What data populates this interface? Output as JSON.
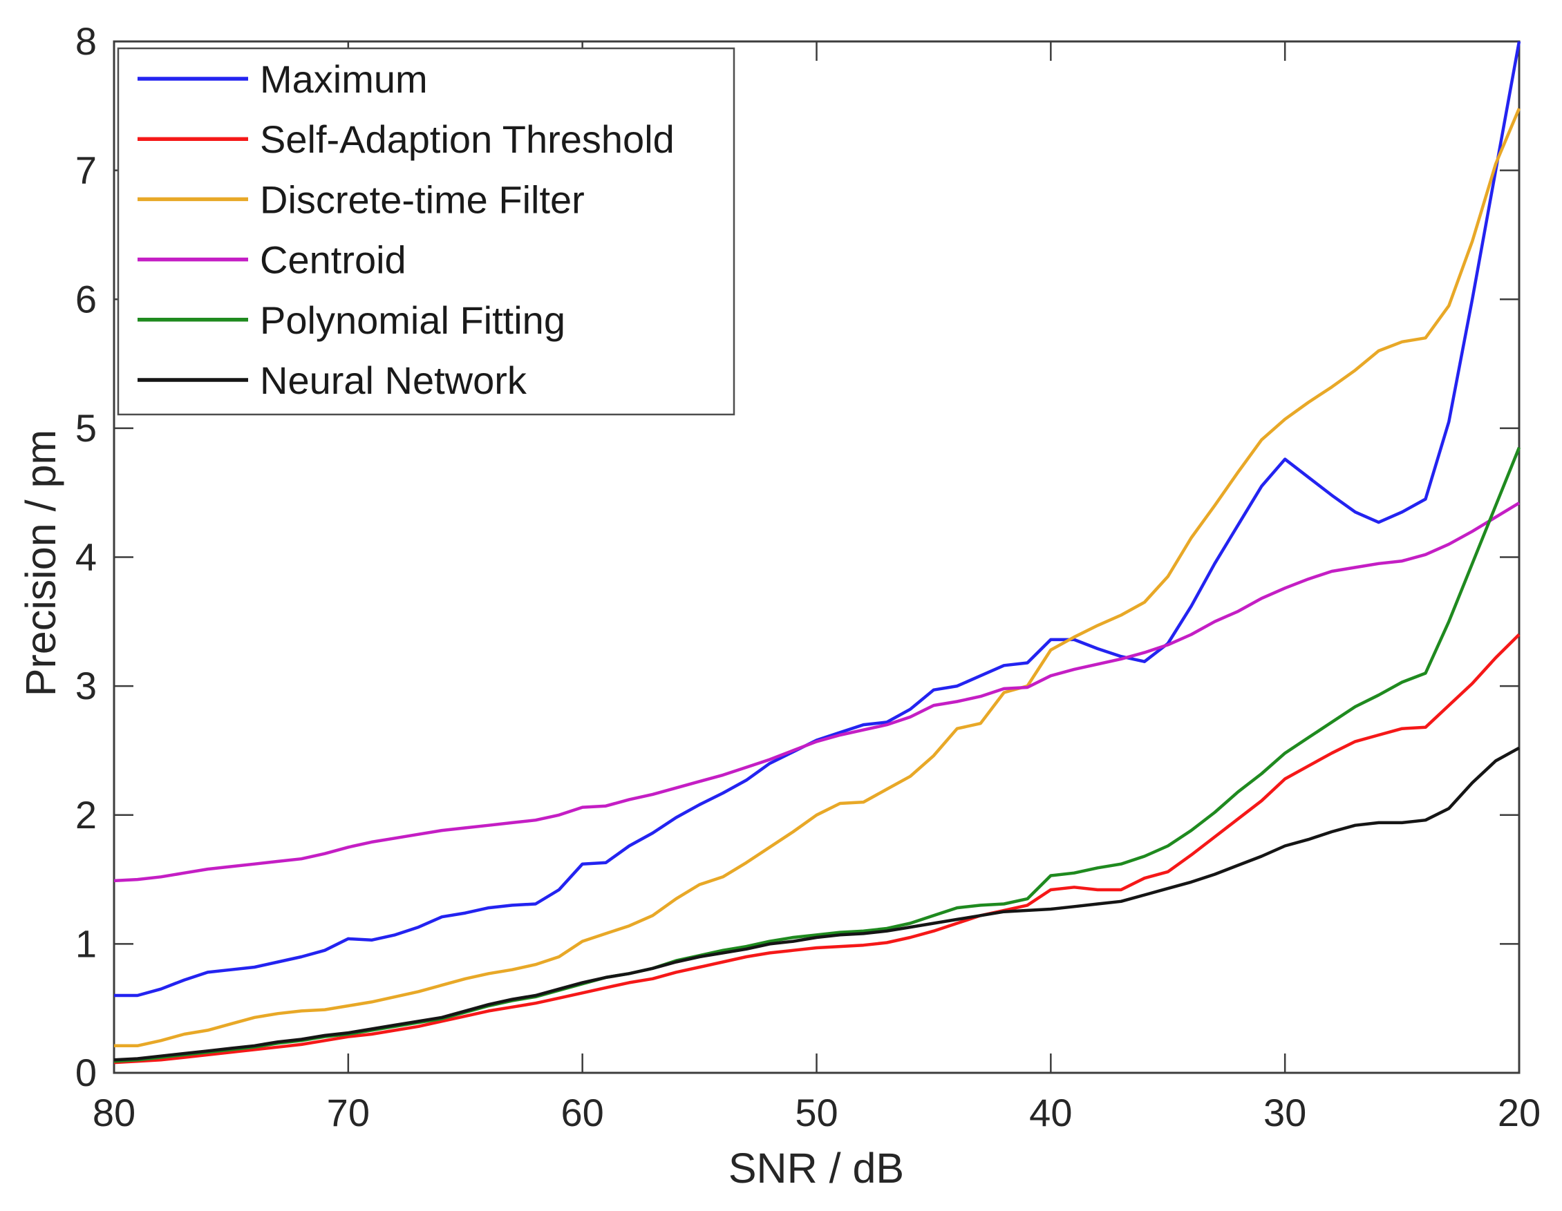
{
  "chart_data": {
    "type": "line",
    "title": "",
    "xlabel": "SNR / dB",
    "ylabel": "Precision / pm",
    "grid": false,
    "legend_position": "top-left",
    "x_axis": {
      "min": 20,
      "max": 80,
      "reversed": true,
      "ticks": [
        80,
        70,
        60,
        50,
        40,
        30,
        20
      ]
    },
    "y_axis": {
      "min": 0,
      "max": 8,
      "ticks": [
        0,
        1,
        2,
        3,
        4,
        5,
        6,
        7,
        8
      ]
    },
    "x_values": [
      80,
      79,
      78,
      77,
      76,
      75,
      74,
      73,
      72,
      71,
      70,
      69,
      68,
      67,
      66,
      65,
      64,
      63,
      62,
      61,
      60,
      59,
      58,
      57,
      56,
      55,
      54,
      53,
      52,
      51,
      50,
      49,
      48,
      47,
      46,
      45,
      44,
      43,
      42,
      41,
      40,
      39,
      38,
      37,
      36,
      35,
      34,
      33,
      32,
      31,
      30,
      29,
      28,
      27,
      26,
      25,
      24,
      23,
      22,
      21,
      20
    ],
    "series": [
      {
        "name": "Maximum",
        "color": "#2323f0",
        "values": [
          0.6,
          0.6,
          0.65,
          0.72,
          0.78,
          0.8,
          0.82,
          0.86,
          0.9,
          0.95,
          1.04,
          1.03,
          1.07,
          1.13,
          1.21,
          1.24,
          1.28,
          1.3,
          1.31,
          1.42,
          1.62,
          1.63,
          1.76,
          1.86,
          1.98,
          2.08,
          2.17,
          2.27,
          2.4,
          2.49,
          2.58,
          2.64,
          2.7,
          2.72,
          2.82,
          2.97,
          3.0,
          3.08,
          3.16,
          3.18,
          3.36,
          3.36,
          3.29,
          3.23,
          3.19,
          3.33,
          3.62,
          3.95,
          4.25,
          4.55,
          4.76,
          4.62,
          4.48,
          4.35,
          4.27,
          4.35,
          4.45,
          5.05,
          6.0,
          7.0,
          8.0
        ]
      },
      {
        "name": "Self-Adaption Threshold",
        "color": "#f51818",
        "values": [
          0.08,
          0.09,
          0.1,
          0.12,
          0.14,
          0.16,
          0.18,
          0.2,
          0.22,
          0.25,
          0.28,
          0.3,
          0.33,
          0.36,
          0.4,
          0.44,
          0.48,
          0.51,
          0.54,
          0.58,
          0.62,
          0.66,
          0.7,
          0.73,
          0.78,
          0.82,
          0.86,
          0.9,
          0.93,
          0.95,
          0.97,
          0.98,
          0.99,
          1.01,
          1.05,
          1.1,
          1.16,
          1.22,
          1.26,
          1.3,
          1.42,
          1.44,
          1.42,
          1.42,
          1.51,
          1.56,
          1.69,
          1.83,
          1.97,
          2.11,
          2.28,
          2.38,
          2.48,
          2.57,
          2.62,
          2.67,
          2.68,
          2.85,
          3.02,
          3.22,
          3.4
        ]
      },
      {
        "name": "Discrete-time Filter",
        "color": "#e8a827",
        "values": [
          0.21,
          0.21,
          0.25,
          0.3,
          0.33,
          0.38,
          0.43,
          0.46,
          0.48,
          0.49,
          0.52,
          0.55,
          0.59,
          0.63,
          0.68,
          0.73,
          0.77,
          0.8,
          0.84,
          0.9,
          1.02,
          1.08,
          1.14,
          1.22,
          1.35,
          1.46,
          1.52,
          1.63,
          1.75,
          1.87,
          2.0,
          2.09,
          2.1,
          2.2,
          2.3,
          2.46,
          2.67,
          2.71,
          2.95,
          3.0,
          3.28,
          3.38,
          3.47,
          3.55,
          3.65,
          3.85,
          4.15,
          4.4,
          4.66,
          4.91,
          5.07,
          5.2,
          5.32,
          5.45,
          5.6,
          5.67,
          5.7,
          5.95,
          6.45,
          7.05,
          7.48
        ]
      },
      {
        "name": "Centroid",
        "color": "#c41ec4",
        "values": [
          1.49,
          1.5,
          1.52,
          1.55,
          1.58,
          1.6,
          1.62,
          1.64,
          1.66,
          1.7,
          1.75,
          1.79,
          1.82,
          1.85,
          1.88,
          1.9,
          1.92,
          1.94,
          1.96,
          2.0,
          2.06,
          2.07,
          2.12,
          2.16,
          2.21,
          2.26,
          2.31,
          2.37,
          2.43,
          2.5,
          2.57,
          2.62,
          2.66,
          2.7,
          2.76,
          2.85,
          2.88,
          2.92,
          2.98,
          2.99,
          3.08,
          3.13,
          3.17,
          3.21,
          3.26,
          3.32,
          3.4,
          3.5,
          3.58,
          3.68,
          3.76,
          3.83,
          3.89,
          3.92,
          3.95,
          3.97,
          4.02,
          4.1,
          4.2,
          4.31,
          4.42
        ]
      },
      {
        "name": "Polynomial Fitting",
        "color": "#1f8a1f",
        "values": [
          0.09,
          0.1,
          0.12,
          0.14,
          0.16,
          0.18,
          0.2,
          0.23,
          0.25,
          0.28,
          0.3,
          0.33,
          0.36,
          0.39,
          0.42,
          0.47,
          0.52,
          0.56,
          0.59,
          0.64,
          0.69,
          0.74,
          0.77,
          0.81,
          0.87,
          0.91,
          0.95,
          0.98,
          1.02,
          1.05,
          1.07,
          1.09,
          1.1,
          1.12,
          1.16,
          1.22,
          1.28,
          1.3,
          1.31,
          1.35,
          1.53,
          1.55,
          1.59,
          1.62,
          1.68,
          1.76,
          1.88,
          2.02,
          2.18,
          2.32,
          2.48,
          2.6,
          2.72,
          2.84,
          2.93,
          3.03,
          3.1,
          3.5,
          3.95,
          4.4,
          4.85
        ]
      },
      {
        "name": "Neural Network",
        "color": "#151515",
        "values": [
          0.1,
          0.11,
          0.13,
          0.15,
          0.17,
          0.19,
          0.21,
          0.24,
          0.26,
          0.29,
          0.31,
          0.34,
          0.37,
          0.4,
          0.43,
          0.48,
          0.53,
          0.57,
          0.6,
          0.65,
          0.7,
          0.74,
          0.77,
          0.81,
          0.86,
          0.9,
          0.93,
          0.96,
          1.0,
          1.02,
          1.05,
          1.07,
          1.08,
          1.1,
          1.13,
          1.16,
          1.19,
          1.22,
          1.25,
          1.26,
          1.27,
          1.29,
          1.31,
          1.33,
          1.38,
          1.43,
          1.48,
          1.54,
          1.61,
          1.68,
          1.76,
          1.81,
          1.87,
          1.92,
          1.94,
          1.94,
          1.96,
          2.05,
          2.25,
          2.42,
          2.52
        ]
      }
    ],
    "style": {
      "axis_color": "#3c3c3c",
      "text_color": "#262626",
      "background": "#ffffff",
      "line_width": 4.5
    }
  }
}
